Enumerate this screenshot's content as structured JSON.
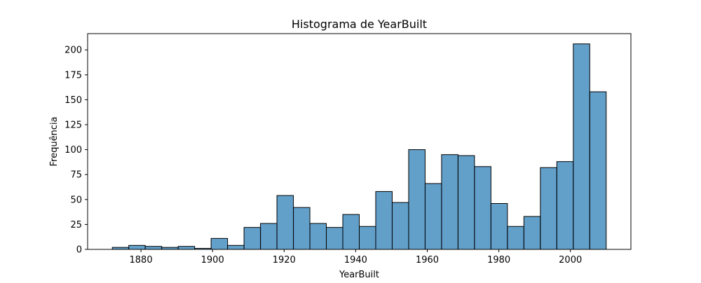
{
  "chart_data": {
    "type": "bar",
    "title": "Histograma de YearBuilt",
    "xlabel": "YearBuilt",
    "ylabel": "Frequência",
    "xlim": [
      1865.1,
      2016.9
    ],
    "ylim": [
      0,
      216.3
    ],
    "xticks": [
      1880,
      1900,
      1920,
      1940,
      1960,
      1980,
      2000
    ],
    "yticks": [
      0,
      25,
      50,
      75,
      100,
      125,
      150,
      175,
      200
    ],
    "grid": false,
    "legend": "none",
    "bin_start": 1872,
    "bin_width": 4.6,
    "values": [
      2,
      4,
      3,
      2,
      3,
      1,
      11,
      4,
      22,
      26,
      54,
      42,
      26,
      22,
      35,
      23,
      58,
      47,
      100,
      66,
      95,
      94,
      83,
      46,
      23,
      33,
      82,
      88,
      206,
      158
    ],
    "colors": {
      "bar_fill": "#1f77b4",
      "bar_opacity": 0.7,
      "bar_edge": "#000000"
    }
  }
}
